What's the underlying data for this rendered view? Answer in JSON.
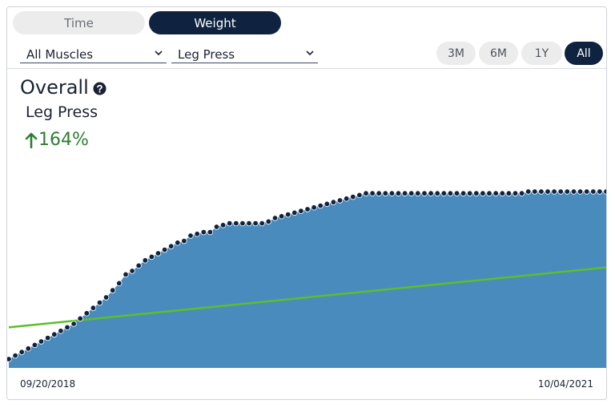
{
  "toggle": {
    "time_label": "Time",
    "weight_label": "Weight",
    "selected": "Weight"
  },
  "filters": {
    "muscles": "All Muscles",
    "exercise": "Leg Press"
  },
  "ranges": {
    "options": [
      "3M",
      "6M",
      "1Y",
      "All"
    ],
    "selected": "All"
  },
  "summary": {
    "title": "Overall",
    "exercise": "Leg Press",
    "change": "164%",
    "change_direction": "up"
  },
  "colors": {
    "area_fill": "#4a8bbd",
    "marker": "#0f2340",
    "trend_line": "#5bbf2a",
    "accent": "#0f2340",
    "positive": "#2e7d32"
  },
  "chart_data": {
    "type": "area",
    "x_labels": [
      "09/20/2018",
      "10/04/2021"
    ],
    "ylim": [
      0,
      100
    ],
    "grid": false,
    "legend": "none",
    "markers": true,
    "trend_line": {
      "start": 23,
      "end": 57
    },
    "series": [
      {
        "values": [
          5,
          7,
          9,
          11,
          13,
          15,
          17,
          19,
          21,
          23,
          25,
          28,
          31,
          34,
          37,
          40,
          44,
          48,
          53,
          55,
          58,
          61,
          63,
          65,
          67,
          69,
          71,
          72,
          75,
          76,
          77,
          77,
          80,
          81,
          82,
          82,
          82,
          82,
          82,
          82,
          83,
          85,
          86,
          87,
          88,
          89,
          90,
          91,
          92,
          93,
          94,
          95,
          96,
          97,
          98,
          99,
          99,
          99,
          99,
          99,
          99,
          99,
          99,
          99,
          99,
          99,
          99,
          99,
          99,
          99,
          99,
          99,
          99,
          99,
          99,
          99,
          99,
          99,
          99,
          99,
          100,
          100,
          100,
          100,
          100,
          100,
          100,
          100,
          100,
          100,
          100,
          100,
          100
        ]
      }
    ]
  }
}
